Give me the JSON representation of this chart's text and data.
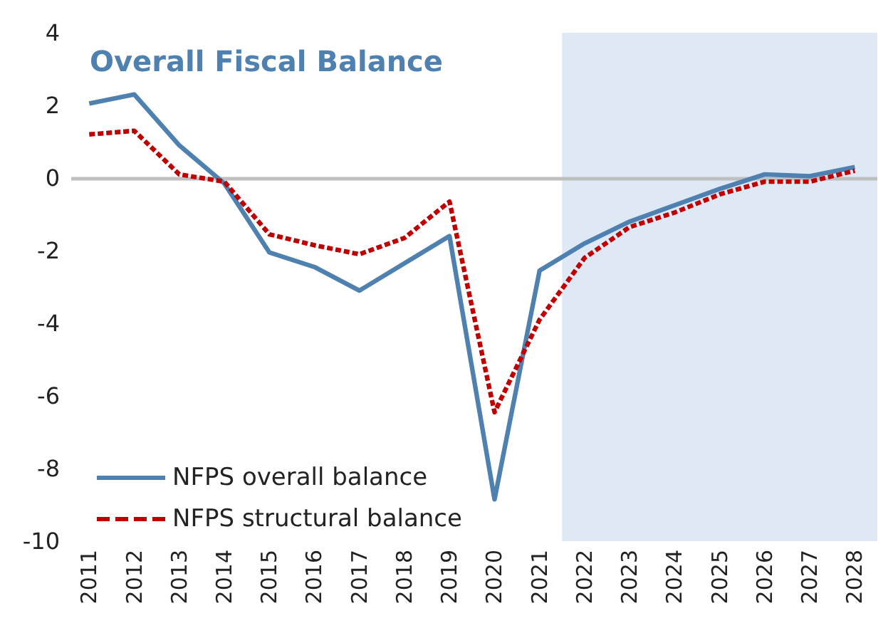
{
  "chart_data": {
    "type": "line",
    "title": "Overall Fiscal Balance",
    "x": [
      2011,
      2012,
      2013,
      2014,
      2015,
      2016,
      2017,
      2018,
      2019,
      2020,
      2021,
      2022,
      2023,
      2024,
      2025,
      2026,
      2027,
      2028
    ],
    "series": [
      {
        "name": "NFPS overall balance",
        "color": "#4f81b0",
        "line_style": "solid",
        "values": [
          2.05,
          2.3,
          0.9,
          -0.15,
          -2.05,
          -2.45,
          -3.1,
          -2.35,
          -1.6,
          -8.85,
          -2.55,
          -1.8,
          -1.2,
          -0.75,
          -0.3,
          0.1,
          0.05,
          0.3
        ]
      },
      {
        "name": "NFPS structural balance",
        "color": "#c00000",
        "line_style": "dashed",
        "values": [
          1.2,
          1.3,
          0.1,
          -0.1,
          -1.55,
          -1.85,
          -2.1,
          -1.65,
          -0.65,
          -6.45,
          -3.9,
          -2.2,
          -1.35,
          -0.95,
          -0.45,
          -0.1,
          -0.1,
          0.2
        ]
      }
    ],
    "xlim": [
      2010.6,
      2028.5
    ],
    "xticks": [
      2011,
      2012,
      2013,
      2014,
      2015,
      2016,
      2017,
      2018,
      2019,
      2020,
      2021,
      2022,
      2023,
      2024,
      2025,
      2026,
      2027,
      2028
    ],
    "ylim": [
      -10,
      4
    ],
    "yticks": [
      -10,
      -8,
      -6,
      -4,
      -2,
      0,
      2,
      4
    ],
    "ref_lines": [
      {
        "axis": "y",
        "value": 0,
        "color": "#bfbfbf"
      }
    ],
    "bands": [
      {
        "axis": "x",
        "from": 2021.5,
        "to": 2028.5,
        "color": "#dfe9f5"
      }
    ],
    "grid": false,
    "legend": "bottom left",
    "marker": "none"
  }
}
